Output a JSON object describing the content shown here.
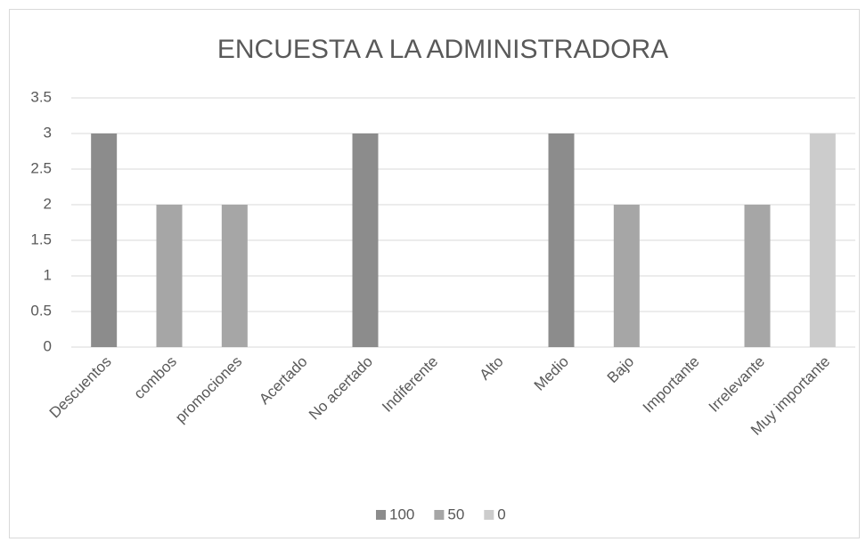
{
  "chart_data": {
    "type": "bar",
    "title": "ENCUESTA A LA ADMINISTRADORA",
    "categories": [
      "Descuentos",
      "combos",
      "promociones",
      "Acertado",
      "No acertado",
      "Indiferente",
      "Alto",
      "Medio",
      "Bajo",
      "Importante",
      "Irrelevante",
      "Muy importante"
    ],
    "series": [
      {
        "name": "100",
        "color": "#8c8c8c",
        "values": [
          3,
          null,
          null,
          null,
          3,
          null,
          null,
          3,
          null,
          null,
          null,
          null
        ]
      },
      {
        "name": "50",
        "color": "#a6a6a6",
        "values": [
          null,
          2,
          2,
          null,
          null,
          null,
          null,
          null,
          2,
          null,
          2,
          null
        ]
      },
      {
        "name": "0",
        "color": "#cccccc",
        "values": [
          null,
          null,
          null,
          null,
          null,
          null,
          null,
          null,
          null,
          null,
          null,
          3
        ]
      }
    ],
    "ylim": [
      0,
      3.5
    ],
    "yticks": [
      0,
      0.5,
      1,
      1.5,
      2,
      2.5,
      3,
      3.5
    ],
    "grid": true,
    "legend": "bottom"
  }
}
